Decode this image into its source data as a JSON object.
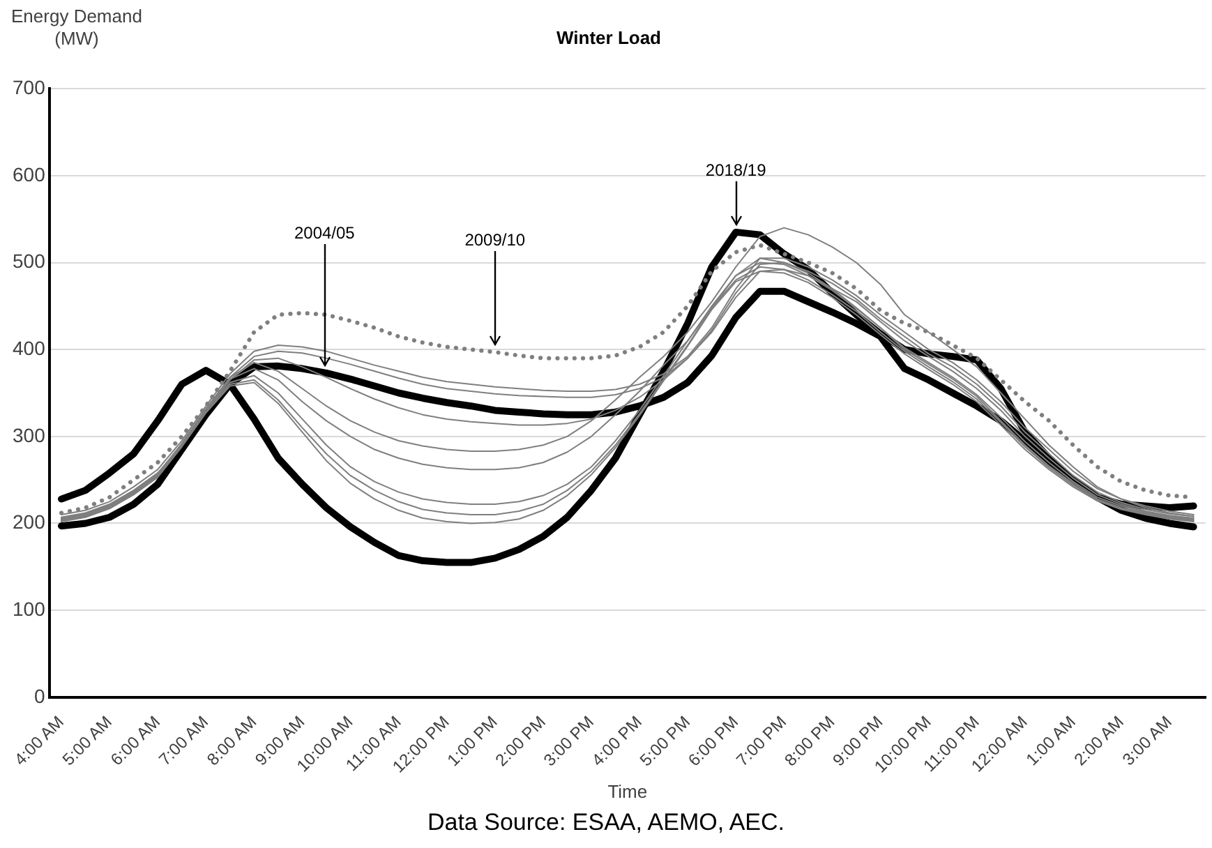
{
  "chart_data": {
    "type": "line",
    "title": "Winter Load",
    "xlabel": "Time",
    "ylabel": "Energy Demand\n(MW)",
    "categories": [
      "4:00 AM",
      null,
      "5:00 AM",
      null,
      "6:00 AM",
      null,
      "7:00 AM",
      null,
      "8:00 AM",
      null,
      "9:00 AM",
      null,
      "10:00 AM",
      null,
      "11:00 AM",
      null,
      "12:00 PM",
      null,
      "1:00 PM",
      null,
      "2:00 PM",
      null,
      "3:00 PM",
      null,
      "4:00 PM",
      null,
      "5:00 PM",
      null,
      "6:00 PM",
      null,
      "7:00 PM",
      null,
      "8:00 PM",
      null,
      "9:00 PM",
      null,
      "10:00 PM",
      null,
      "11:00 PM",
      null,
      "12:00 AM",
      null,
      "1:00 AM",
      null,
      "2:00 AM",
      null,
      "3:00 AM",
      null
    ],
    "ylim": [
      0,
      700
    ],
    "yticks": [
      0,
      100,
      200,
      300,
      400,
      500,
      600,
      700
    ],
    "grid": "y",
    "legend": false,
    "marker": "none",
    "series": [
      {
        "color": "#7f7f7f",
        "values": [
          210,
          215,
          225,
          242,
          262,
          295,
          335,
          372,
          398,
          405,
          403,
          398,
          390,
          382,
          375,
          368,
          363,
          360,
          357,
          355,
          353,
          352,
          352,
          354,
          360,
          372,
          392,
          425,
          470,
          505,
          505,
          495,
          480,
          462,
          440,
          420,
          400,
          385,
          365,
          340,
          310,
          285,
          260,
          240,
          228,
          220,
          214,
          210
        ]
      },
      {
        "color": "#7f7f7f",
        "values": [
          207,
          212,
          222,
          238,
          258,
          290,
          330,
          368,
          392,
          398,
          396,
          390,
          383,
          375,
          367,
          360,
          355,
          352,
          349,
          347,
          346,
          345,
          345,
          348,
          355,
          368,
          390,
          422,
          465,
          498,
          500,
          490,
          476,
          458,
          435,
          415,
          395,
          380,
          360,
          335,
          305,
          280,
          255,
          236,
          224,
          216,
          211,
          208
        ]
      },
      {
        "color": "#7f7f7f",
        "values": [
          205,
          210,
          220,
          236,
          256,
          290,
          330,
          365,
          388,
          390,
          380,
          368,
          355,
          343,
          333,
          325,
          320,
          317,
          315,
          313,
          313,
          315,
          320,
          330,
          345,
          365,
          390,
          420,
          460,
          490,
          492,
          485,
          470,
          455,
          432,
          410,
          392,
          375,
          355,
          330,
          300,
          275,
          252,
          233,
          222,
          214,
          209,
          206
        ]
      },
      {
        "color": "#7f7f7f",
        "values": [
          206,
          211,
          221,
          237,
          257,
          292,
          332,
          368,
          385,
          375,
          355,
          335,
          318,
          305,
          295,
          289,
          285,
          283,
          283,
          285,
          290,
          300,
          318,
          342,
          368,
          392,
          420,
          455,
          495,
          530,
          540,
          532,
          518,
          500,
          475,
          440,
          420,
          400,
          380,
          350,
          320,
          290,
          265,
          242,
          228,
          218,
          212,
          208
        ]
      },
      {
        "color": "#7f7f7f",
        "values": [
          205,
          210,
          220,
          236,
          256,
          291,
          331,
          366,
          378,
          365,
          340,
          318,
          300,
          285,
          275,
          268,
          264,
          262,
          262,
          264,
          270,
          282,
          300,
          325,
          352,
          382,
          410,
          448,
          485,
          505,
          500,
          488,
          470,
          448,
          425,
          402,
          385,
          368,
          348,
          322,
          294,
          270,
          248,
          230,
          220,
          213,
          208,
          205
        ]
      },
      {
        "color": "#7f7f7f",
        "values": [
          204,
          209,
          219,
          235,
          255,
          290,
          330,
          362,
          370,
          350,
          320,
          290,
          265,
          248,
          236,
          228,
          224,
          222,
          222,
          225,
          232,
          245,
          265,
          295,
          330,
          370,
          410,
          450,
          485,
          500,
          498,
          485,
          468,
          447,
          425,
          400,
          383,
          366,
          346,
          318,
          290,
          266,
          246,
          228,
          218,
          212,
          207,
          204
        ]
      },
      {
        "color": "#7f7f7f",
        "values": [
          203,
          208,
          218,
          234,
          254,
          289,
          328,
          360,
          365,
          342,
          310,
          280,
          255,
          238,
          225,
          216,
          212,
          210,
          210,
          214,
          222,
          238,
          260,
          290,
          326,
          366,
          405,
          448,
          480,
          495,
          492,
          480,
          463,
          444,
          420,
          398,
          380,
          363,
          343,
          316,
          288,
          264,
          244,
          227,
          217,
          211,
          206,
          203
        ]
      },
      {
        "color": "#7f7f7f",
        "values": [
          202,
          207,
          217,
          233,
          253,
          288,
          327,
          358,
          362,
          338,
          305,
          272,
          246,
          228,
          215,
          206,
          202,
          200,
          201,
          205,
          215,
          232,
          256,
          287,
          324,
          364,
          404,
          446,
          478,
          490,
          488,
          477,
          460,
          440,
          417,
          395,
          377,
          360,
          340,
          313,
          285,
          262,
          242,
          226,
          216,
          210,
          205,
          202
        ]
      },
      {
        "color": "#7f7f7f",
        "line_style": "dotted",
        "values": [
          212,
          218,
          230,
          250,
          270,
          300,
          335,
          375,
          420,
          440,
          442,
          440,
          433,
          425,
          415,
          408,
          403,
          400,
          397,
          393,
          390,
          390,
          390,
          393,
          403,
          420,
          450,
          490,
          512,
          520,
          510,
          500,
          488,
          470,
          445,
          430,
          420,
          405,
          390,
          365,
          340,
          318,
          290,
          265,
          248,
          238,
          232,
          230
        ]
      },
      {
        "color": "#000000",
        "values": [
          197,
          200,
          207,
          222,
          245,
          285,
          325,
          360,
          380,
          381,
          378,
          373,
          366,
          358,
          350,
          344,
          339,
          335,
          330,
          328,
          326,
          325,
          325,
          328,
          335,
          345,
          362,
          393,
          437,
          467,
          467,
          455,
          443,
          430,
          415,
          378,
          365,
          350,
          335,
          318,
          295,
          270,
          250,
          230,
          215,
          206,
          200,
          196
        ]
      },
      {
        "color": "#000000",
        "values": [
          228,
          238,
          258,
          280,
          318,
          360,
          376,
          360,
          320,
          275,
          245,
          218,
          196,
          178,
          163,
          157,
          155,
          155,
          160,
          170,
          185,
          207,
          238,
          275,
          325,
          375,
          430,
          495,
          535,
          532,
          510,
          492,
          465,
          440,
          418,
          400,
          395,
          392,
          388,
          355,
          305,
          275,
          250,
          230,
          222,
          220,
          218,
          220
        ]
      }
    ],
    "annotations": [
      {
        "text": "2004/05",
        "y": 373
      },
      {
        "text": "2009/10",
        "x": "1:00 PM",
        "y": 397
      },
      {
        "text": "2018/19",
        "x": "6:00 PM",
        "y": 535
      },
      "Data Source: ESAA, AEMO, AEC."
    ]
  }
}
